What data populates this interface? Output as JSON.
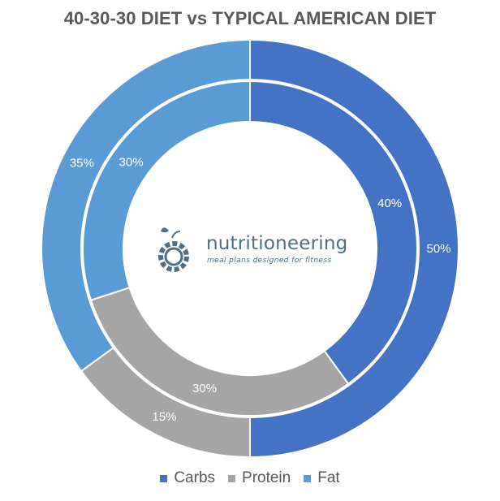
{
  "chart_data": {
    "type": "donut",
    "title": "40-30-30 DIET vs TYPICAL AMERICAN DIET",
    "categories": [
      "Carbs",
      "Protein",
      "Fat"
    ],
    "colors": {
      "Carbs": "#4472C4",
      "Protein": "#A5A5A5",
      "Fat": "#5B9BD5"
    },
    "series": [
      {
        "ring": "inner",
        "values": [
          40,
          30,
          30
        ],
        "labels": [
          "40%",
          "30%",
          "30%"
        ]
      },
      {
        "ring": "outer",
        "values": [
          50,
          15,
          35
        ],
        "labels": [
          "50%",
          "15%",
          "35%"
        ]
      }
    ],
    "legend_position": "bottom"
  },
  "logo": {
    "name": "nutritioneering",
    "tagline": "meal plans designed for fitness",
    "icon": "apple-gear-icon"
  }
}
